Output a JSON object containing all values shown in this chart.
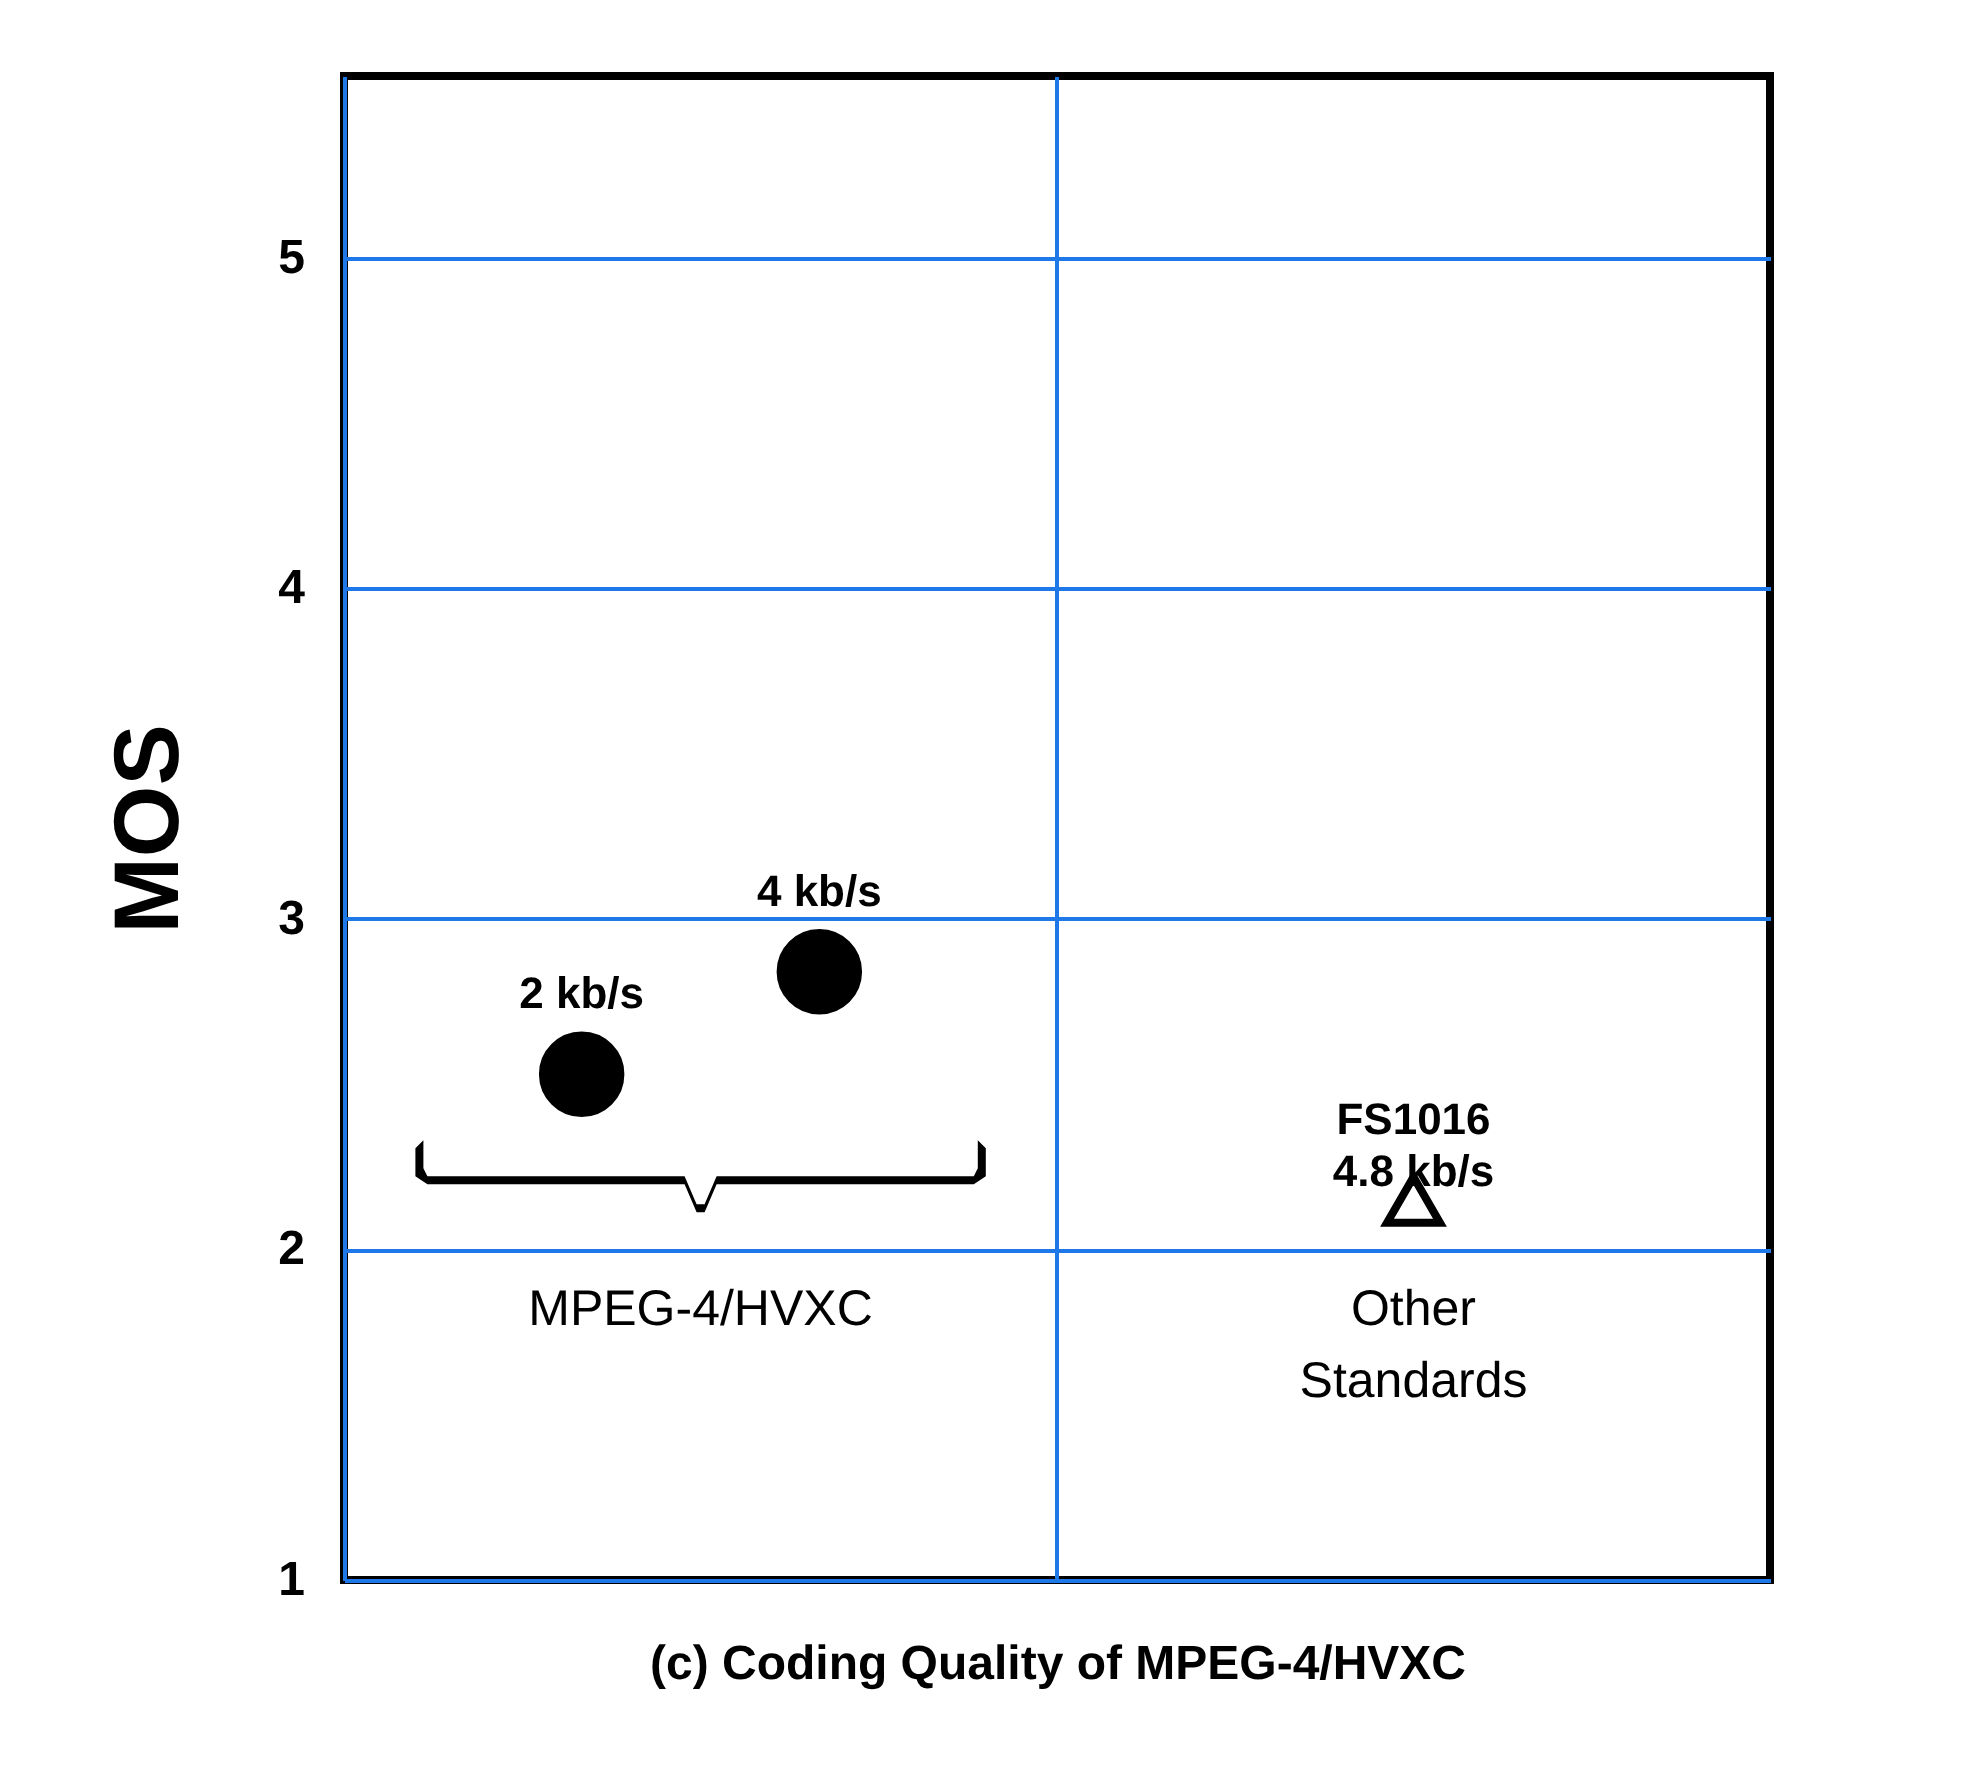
{
  "chart_data": {
    "type": "scatter",
    "xlabel": "(c) Coding Quality of MPEG-4/HVXC",
    "ylabel": "MOS",
    "categories": [
      "MPEG-4/HVXC",
      "Other Standards"
    ],
    "ylim": [
      1,
      5.55
    ],
    "yticks": [
      1,
      2,
      3,
      4,
      5
    ],
    "grid": true,
    "series": [
      {
        "name": "2 kb/s",
        "marker": "circle",
        "color": "#000000",
        "values": [
          2.53,
          null
        ]
      },
      {
        "name": "4 kb/s",
        "marker": "circle",
        "color": "#000000",
        "values": [
          2.84,
          null
        ]
      },
      {
        "name": "FS1016\n4.8 kb/s",
        "marker": "triangle",
        "color": "#000000",
        "values": [
          null,
          2.15
        ]
      }
    ]
  }
}
